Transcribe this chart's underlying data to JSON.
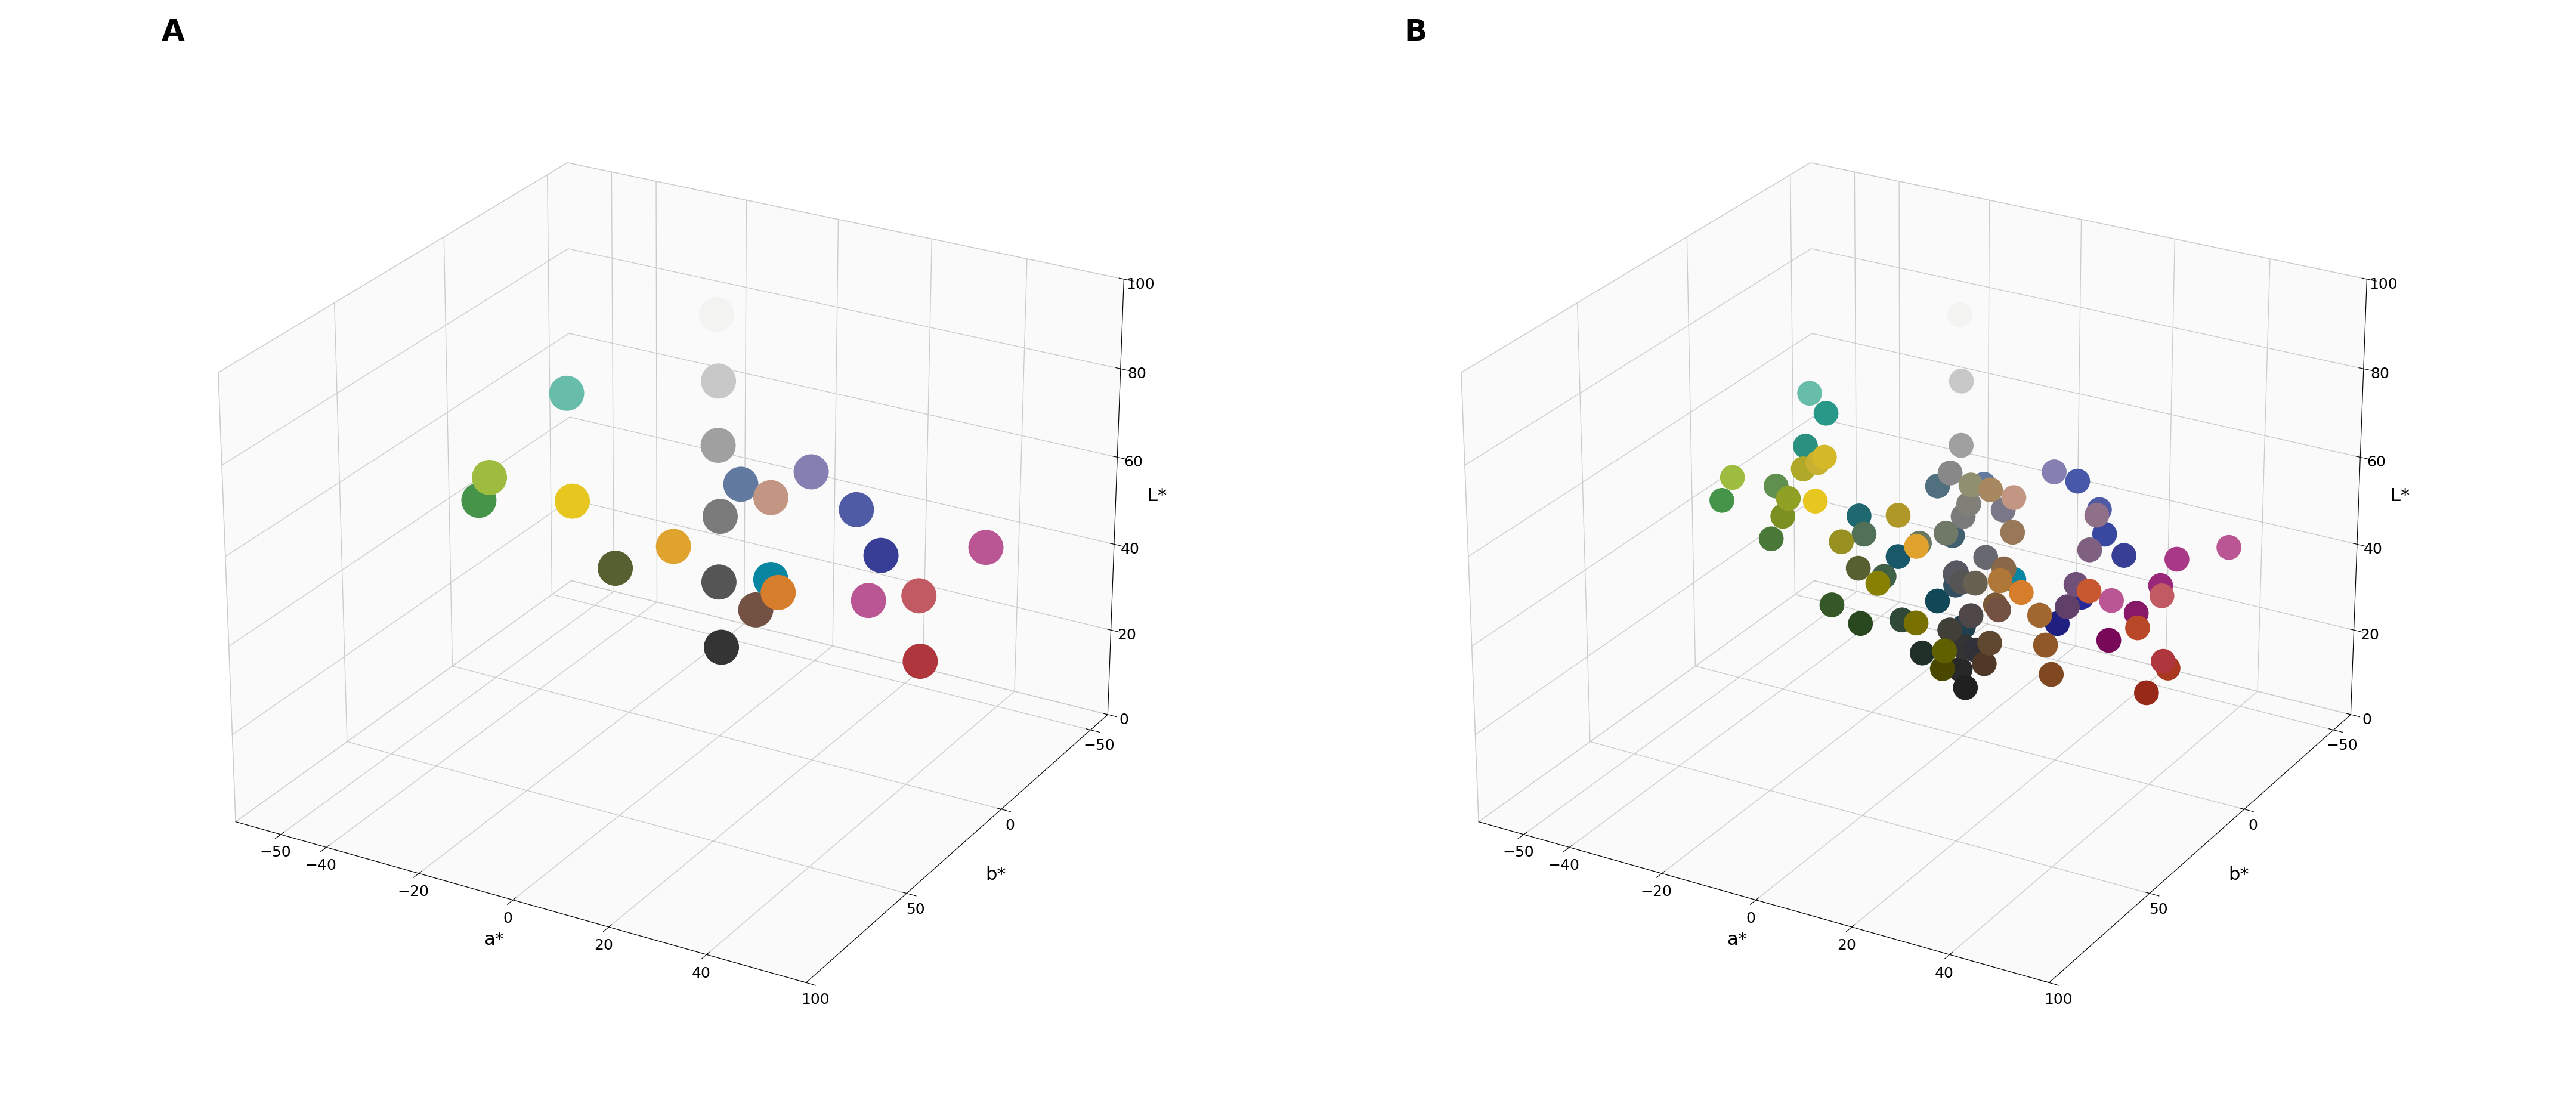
{
  "cc24": [
    {
      "L": 37.99,
      "a": 13.56,
      "b": 14.06,
      "hex": "#735244"
    },
    {
      "L": 65.71,
      "a": 18.13,
      "b": 17.81,
      "hex": "#c29682"
    },
    {
      "L": 49.93,
      "a": -4.88,
      "b": -21.93,
      "hex": "#627a9f"
    },
    {
      "L": 43.14,
      "a": -13.1,
      "b": 21.91,
      "hex": "#576030"
    },
    {
      "L": 55.11,
      "a": 8.84,
      "b": -25.4,
      "hex": "#8580b1"
    },
    {
      "L": 70.72,
      "a": -33.4,
      "b": -0.2,
      "hex": "#67bdaa"
    },
    {
      "L": 62.66,
      "a": 36.07,
      "b": 57.1,
      "hex": "#d67e2c"
    },
    {
      "L": 40.02,
      "a": 10.41,
      "b": -45.96,
      "hex": "#505ba6"
    },
    {
      "L": 51.12,
      "a": 48.24,
      "b": 16.25,
      "hex": "#c15a63"
    },
    {
      "L": 30.33,
      "a": 22.98,
      "b": -21.59,
      "hex": "#bb5695"
    },
    {
      "L": 72.53,
      "a": -23.71,
      "b": 57.26,
      "hex": "#9dbc40"
    },
    {
      "L": 71.94,
      "a": 19.36,
      "b": 67.86,
      "hex": "#e0a32e"
    },
    {
      "L": 28.78,
      "a": 14.18,
      "b": -50.3,
      "hex": "#383d96"
    },
    {
      "L": 55.26,
      "a": -38.34,
      "b": 31.37,
      "hex": "#469449"
    },
    {
      "L": 42.1,
      "a": 53.38,
      "b": 28.19,
      "hex": "#af363c"
    },
    {
      "L": 81.73,
      "a": 4.04,
      "b": 79.82,
      "hex": "#e7c71f"
    },
    {
      "L": 51.94,
      "a": 49.99,
      "b": -14.57,
      "hex": "#bb5695"
    },
    {
      "L": 26.9,
      "a": -0.63,
      "b": -27.71,
      "hex": "#0885a1"
    },
    {
      "L": 96.54,
      "a": -0.43,
      "b": 1.19,
      "hex": "#f3f3f2"
    },
    {
      "L": 81.26,
      "a": -0.64,
      "b": -0.34,
      "hex": "#c8c8c8"
    },
    {
      "L": 66.77,
      "a": -0.73,
      "b": -0.5,
      "hex": "#a0a0a0"
    },
    {
      "L": 50.87,
      "a": -0.15,
      "b": -0.27,
      "hex": "#7a7a7a"
    },
    {
      "L": 35.66,
      "a": -0.46,
      "b": -0.48,
      "hex": "#555555"
    },
    {
      "L": 20.46,
      "a": -0.08,
      "b": -0.97,
      "hex": "#343434"
    }
  ],
  "extra_B": [
    {
      "L": 78.0,
      "a": -8.0,
      "b": 52.0,
      "hex": "#c8b030"
    },
    {
      "L": 83.0,
      "a": -3.0,
      "b": 60.0,
      "hex": "#d4b828"
    },
    {
      "L": 65.0,
      "a": -18.0,
      "b": 44.0,
      "hex": "#90a025"
    },
    {
      "L": 58.0,
      "a": -22.0,
      "b": 38.0,
      "hex": "#7a9020"
    },
    {
      "L": 75.0,
      "a": -12.0,
      "b": 50.0,
      "hex": "#b0a828"
    },
    {
      "L": 60.0,
      "a": -28.0,
      "b": 28.0,
      "hex": "#609050"
    },
    {
      "L": 45.0,
      "a": -32.0,
      "b": 22.0,
      "hex": "#4a7838"
    },
    {
      "L": 30.0,
      "a": -22.0,
      "b": 15.0,
      "hex": "#355828"
    },
    {
      "L": 25.0,
      "a": -18.0,
      "b": 10.0,
      "hex": "#2a4820"
    },
    {
      "L": 55.0,
      "a": -38.0,
      "b": -8.0,
      "hex": "#2a9080"
    },
    {
      "L": 40.0,
      "a": -28.0,
      "b": -12.0,
      "hex": "#206870"
    },
    {
      "L": 30.0,
      "a": -22.0,
      "b": -18.0,
      "hex": "#185868"
    },
    {
      "L": 20.0,
      "a": -15.0,
      "b": -22.0,
      "hex": "#104858"
    },
    {
      "L": 15.0,
      "a": -10.0,
      "b": -18.0,
      "hex": "#0a3845"
    },
    {
      "L": 65.0,
      "a": -32.0,
      "b": -5.0,
      "hex": "#2a9888"
    },
    {
      "L": 48.0,
      "a": 8.0,
      "b": -40.0,
      "hex": "#4858a8"
    },
    {
      "L": 35.0,
      "a": 12.0,
      "b": -45.0,
      "hex": "#3848a0"
    },
    {
      "L": 22.0,
      "a": 10.0,
      "b": -38.0,
      "hex": "#282898"
    },
    {
      "L": 18.0,
      "a": 8.0,
      "b": -30.0,
      "hex": "#202080"
    },
    {
      "L": 58.0,
      "a": 42.0,
      "b": 38.0,
      "hex": "#c85830"
    },
    {
      "L": 48.0,
      "a": 48.0,
      "b": 28.0,
      "hex": "#b84828"
    },
    {
      "L": 38.0,
      "a": 52.0,
      "b": 22.0,
      "hex": "#a83820"
    },
    {
      "L": 28.0,
      "a": 45.0,
      "b": 15.0,
      "hex": "#982818"
    },
    {
      "L": 45.0,
      "a": 38.0,
      "b": -18.0,
      "hex": "#a83888"
    },
    {
      "L": 35.0,
      "a": 32.0,
      "b": -25.0,
      "hex": "#982878"
    },
    {
      "L": 25.0,
      "a": 25.0,
      "b": -30.0,
      "hex": "#881868"
    },
    {
      "L": 18.0,
      "a": 20.0,
      "b": -28.0,
      "hex": "#780858"
    },
    {
      "L": 55.0,
      "a": 2.0,
      "b": 2.0,
      "hex": "#808078"
    },
    {
      "L": 48.0,
      "a": -2.0,
      "b": 4.0,
      "hex": "#707868"
    },
    {
      "L": 42.0,
      "a": 4.0,
      "b": -2.0,
      "hex": "#686870"
    },
    {
      "L": 36.0,
      "a": -3.0,
      "b": -3.0,
      "hex": "#585860"
    },
    {
      "L": 30.0,
      "a": 3.0,
      "b": 3.0,
      "hex": "#504848"
    },
    {
      "L": 25.0,
      "a": -2.0,
      "b": 2.0,
      "hex": "#404038"
    },
    {
      "L": 20.0,
      "a": 2.0,
      "b": -2.0,
      "hex": "#303038"
    },
    {
      "L": 15.0,
      "a": -1.0,
      "b": -1.0,
      "hex": "#282828"
    },
    {
      "L": 12.0,
      "a": 1.0,
      "b": 1.0,
      "hex": "#202020"
    },
    {
      "L": 62.0,
      "a": 5.0,
      "b": 8.0,
      "hex": "#909070"
    },
    {
      "L": 58.0,
      "a": -5.0,
      "b": -5.0,
      "hex": "#888888"
    },
    {
      "L": 52.0,
      "a": 6.0,
      "b": -6.0,
      "hex": "#7a7888"
    },
    {
      "L": 46.0,
      "a": -6.0,
      "b": 8.0,
      "hex": "#6a7860"
    },
    {
      "L": 40.0,
      "a": 6.0,
      "b": 8.0,
      "hex": "#686050"
    },
    {
      "L": 35.0,
      "a": -4.0,
      "b": -6.0,
      "hex": "#585868"
    },
    {
      "L": 68.0,
      "a": 15.0,
      "b": 22.0,
      "hex": "#a88860"
    },
    {
      "L": 58.0,
      "a": 18.0,
      "b": 18.0,
      "hex": "#987858"
    },
    {
      "L": 48.0,
      "a": 15.0,
      "b": 15.0,
      "hex": "#886848"
    },
    {
      "L": 38.0,
      "a": 12.0,
      "b": 12.0,
      "hex": "#785838"
    },
    {
      "L": 28.0,
      "a": 10.0,
      "b": 10.0,
      "hex": "#604830"
    },
    {
      "L": 22.0,
      "a": 8.0,
      "b": 8.0,
      "hex": "#503828"
    },
    {
      "L": 60.0,
      "a": -5.0,
      "b": 48.0,
      "hex": "#989020"
    },
    {
      "L": 50.0,
      "a": 0.0,
      "b": 42.0,
      "hex": "#888000"
    },
    {
      "L": 40.0,
      "a": 5.0,
      "b": 35.0,
      "hex": "#787000"
    },
    {
      "L": 32.0,
      "a": 8.0,
      "b": 28.0,
      "hex": "#606000"
    },
    {
      "L": 25.0,
      "a": 5.0,
      "b": 22.0,
      "hex": "#4a4800"
    },
    {
      "L": 55.0,
      "a": 25.0,
      "b": -8.0,
      "hex": "#907088"
    },
    {
      "L": 45.0,
      "a": 22.0,
      "b": -12.0,
      "hex": "#806080"
    },
    {
      "L": 35.0,
      "a": 18.0,
      "b": -15.0,
      "hex": "#705078"
    },
    {
      "L": 28.0,
      "a": 15.0,
      "b": -18.0,
      "hex": "#604068"
    },
    {
      "L": 50.0,
      "a": -12.0,
      "b": -15.0,
      "hex": "#507080"
    },
    {
      "L": 38.0,
      "a": -10.0,
      "b": -18.0,
      "hex": "#406070"
    },
    {
      "L": 28.0,
      "a": -8.0,
      "b": -15.0,
      "hex": "#305060"
    },
    {
      "L": 20.0,
      "a": -5.0,
      "b": -12.0,
      "hex": "#204050"
    },
    {
      "L": 45.0,
      "a": -18.0,
      "b": 8.0,
      "hex": "#507058"
    },
    {
      "L": 35.0,
      "a": -15.0,
      "b": 5.0,
      "hex": "#406048"
    },
    {
      "L": 25.0,
      "a": -12.0,
      "b": 3.0,
      "hex": "#304838"
    },
    {
      "L": 18.0,
      "a": -8.0,
      "b": 2.0,
      "hex": "#203028"
    },
    {
      "L": 72.0,
      "a": 10.0,
      "b": 55.0,
      "hex": "#b09828"
    },
    {
      "L": 60.0,
      "a": 28.0,
      "b": 48.0,
      "hex": "#b07838"
    },
    {
      "L": 50.0,
      "a": 32.0,
      "b": 38.0,
      "hex": "#a06830"
    },
    {
      "L": 40.0,
      "a": 30.0,
      "b": 30.0,
      "hex": "#905828"
    },
    {
      "L": 30.0,
      "a": 28.0,
      "b": 22.0,
      "hex": "#804820"
    }
  ],
  "xlim_a": [
    -60,
    60
  ],
  "ylim_b": [
    -60,
    100
  ],
  "zlim_L": [
    0,
    100
  ],
  "xticks_a": [
    -50,
    -40,
    -20,
    0,
    20,
    40
  ],
  "yticks_b": [
    100,
    50,
    0,
    -50
  ],
  "zticks_L": [
    0,
    20,
    40,
    60,
    80,
    100
  ],
  "view_elev": 25,
  "view_azim": -60,
  "marker_size_A": 1800,
  "marker_size_B": 900,
  "font_size_label": 22,
  "font_size_tick": 18,
  "font_size_panel": 36,
  "grid_color": "#cccccc",
  "pane_color": "#f0f0f0"
}
